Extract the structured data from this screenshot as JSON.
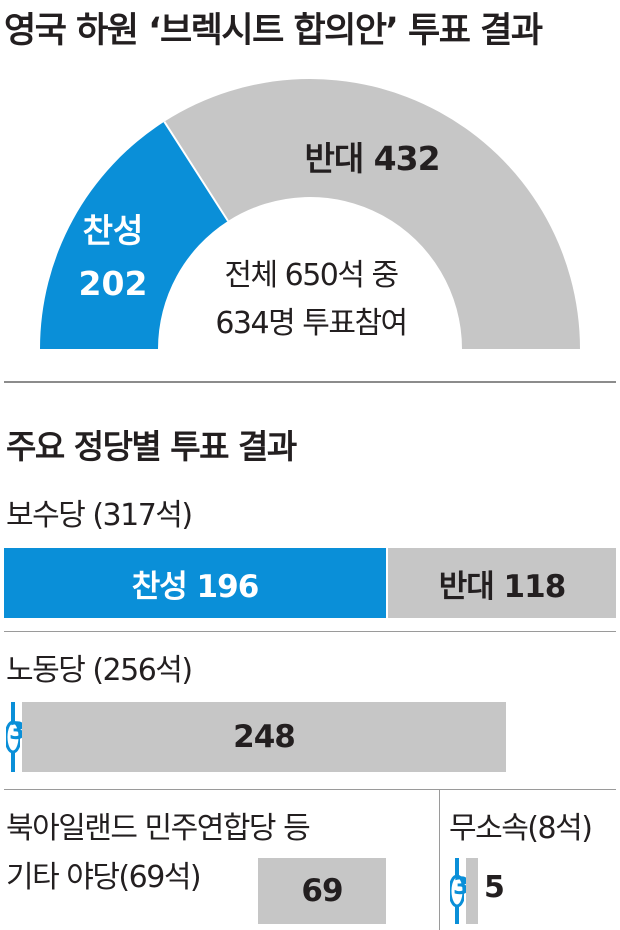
{
  "title": "영국 하원 ‘브렉시트 합의안’ 투표 결과",
  "colors": {
    "yes": "#0a8fd8",
    "no": "#c6c6c6",
    "text": "#231f20"
  },
  "overall": {
    "yes_label": "찬성",
    "yes_value": "202",
    "no_text": "반대 432",
    "center_line1": "전체 650석 중",
    "center_line2": "634명 투표참여"
  },
  "section_title": "주요 정당별 투표 결과",
  "parties": {
    "conservative": {
      "name": "보수당 (317석)",
      "yes_text": "찬성 196",
      "no_text": "반대 118"
    },
    "labour": {
      "name": "노동당 (256석)",
      "yes_text": "3",
      "no_text": "248"
    },
    "others": {
      "name_line1": "북아일랜드 민주연합당 등",
      "name_line2": "기타 야당(69석)",
      "no_text": "69"
    },
    "independent": {
      "name": "무소속(8석)",
      "yes_text": "3",
      "no_text": "5"
    }
  },
  "chart_data": {
    "type": "bar",
    "overall": {
      "type": "pie",
      "categories": [
        "찬성",
        "반대"
      ],
      "values": [
        202,
        432
      ],
      "total_seats": 650,
      "voted": 634
    },
    "categories": [
      "보수당",
      "노동당",
      "기타 야당",
      "무소속"
    ],
    "seats": [
      317,
      256,
      69,
      8
    ],
    "series": [
      {
        "name": "찬성",
        "values": [
          196,
          3,
          0,
          3
        ]
      },
      {
        "name": "반대",
        "values": [
          118,
          248,
          69,
          5
        ]
      }
    ]
  }
}
